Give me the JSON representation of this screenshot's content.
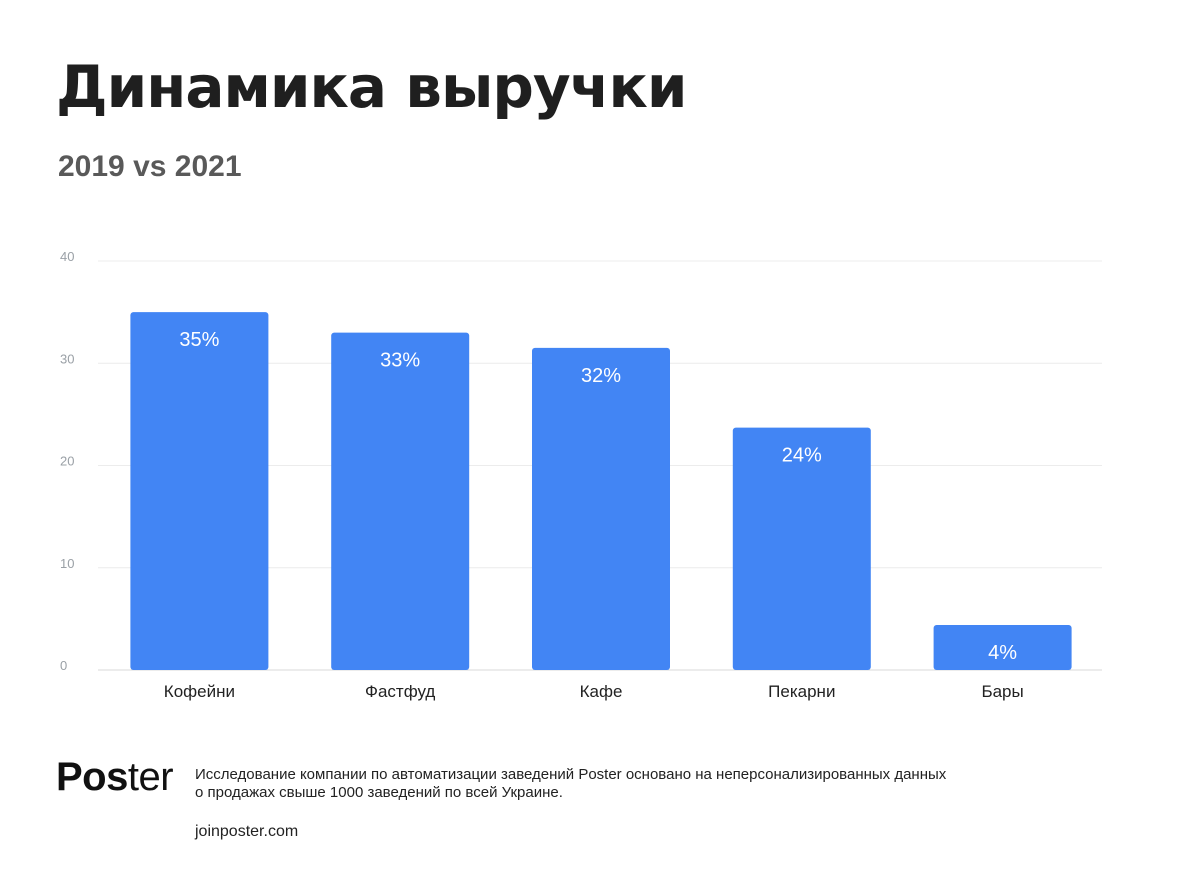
{
  "header": {
    "title": "Динамика выручки",
    "subtitle": "2019 vs 2021"
  },
  "chart_data": {
    "type": "bar",
    "categories": [
      "Кофейни",
      "Фастфуд",
      "Кафе",
      "Пекарни",
      "Бары"
    ],
    "values": [
      35,
      33,
      31.5,
      23.7,
      4.4
    ],
    "data_labels": [
      "35%",
      "33%",
      "32%",
      "24%",
      "4%"
    ],
    "ylim": [
      0,
      40
    ],
    "yticks": [
      0,
      10,
      20,
      30,
      40
    ],
    "grid": true,
    "bar_color": "#4285f4",
    "label_color": "#ffffff"
  },
  "footer": {
    "logo_bold": "Pos",
    "logo_rest": "ter",
    "disclaimer": "Исследование компании по автоматизации заведений Poster основано на неперсонализированных данных о продажах свыше 1000 заведений по всей Украине.",
    "site": "joinposter.com"
  }
}
